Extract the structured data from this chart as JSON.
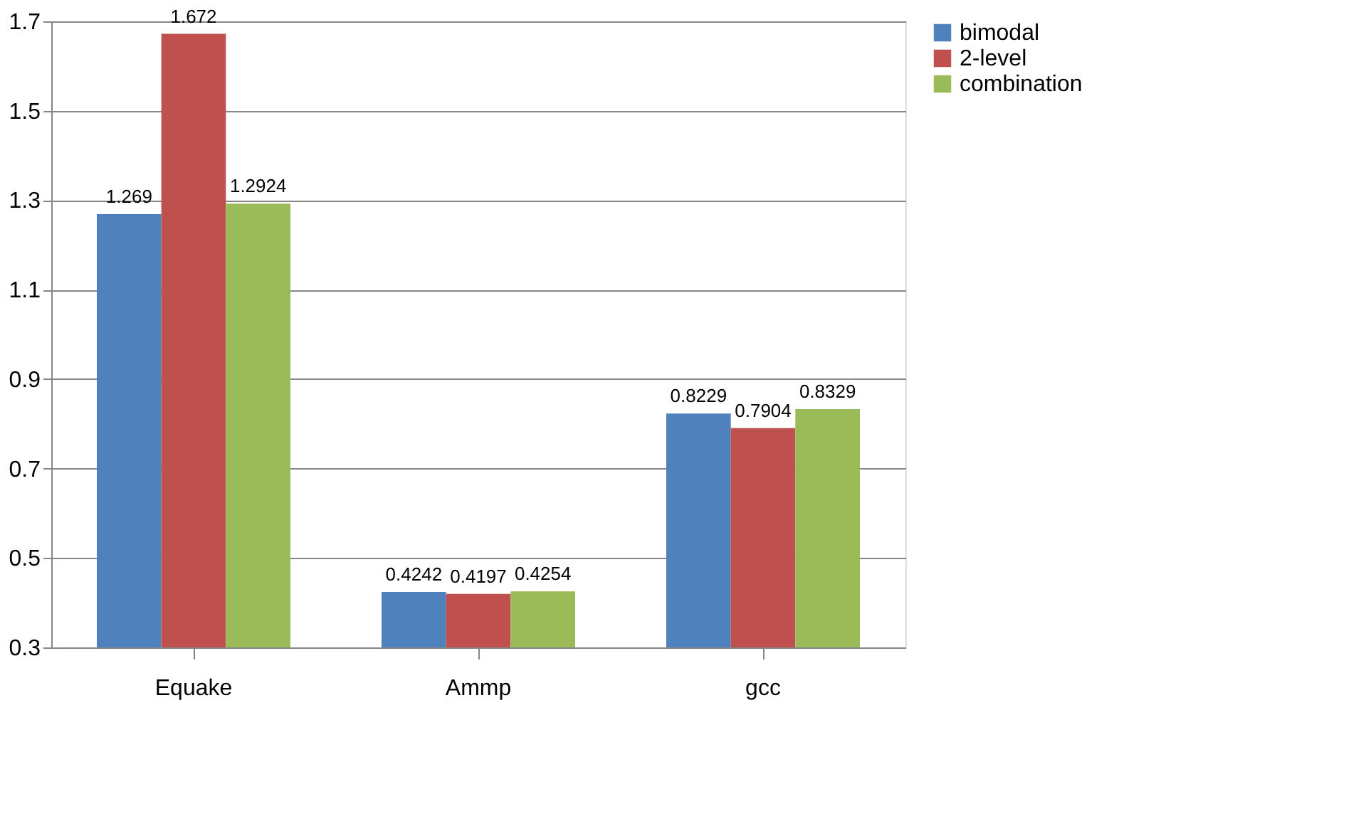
{
  "chart_data": {
    "type": "bar",
    "categories": [
      "Equake",
      "Ammp",
      "gcc"
    ],
    "series": [
      {
        "name": "bimodal",
        "color": "#4f81bd",
        "values": [
          1.269,
          0.4242,
          0.8229
        ]
      },
      {
        "name": "2-level",
        "color": "#c0504d",
        "values": [
          1.672,
          0.4197,
          0.7904
        ]
      },
      {
        "name": "combination",
        "color": "#9bbb59",
        "values": [
          1.2924,
          0.4254,
          0.8329
        ]
      }
    ],
    "ylim": [
      0.3,
      1.7
    ],
    "yticks": [
      0.3,
      0.5,
      0.7,
      0.9,
      1.1,
      1.3,
      1.5,
      1.7
    ],
    "grid": "y",
    "legend": "right",
    "data_labels": true
  }
}
